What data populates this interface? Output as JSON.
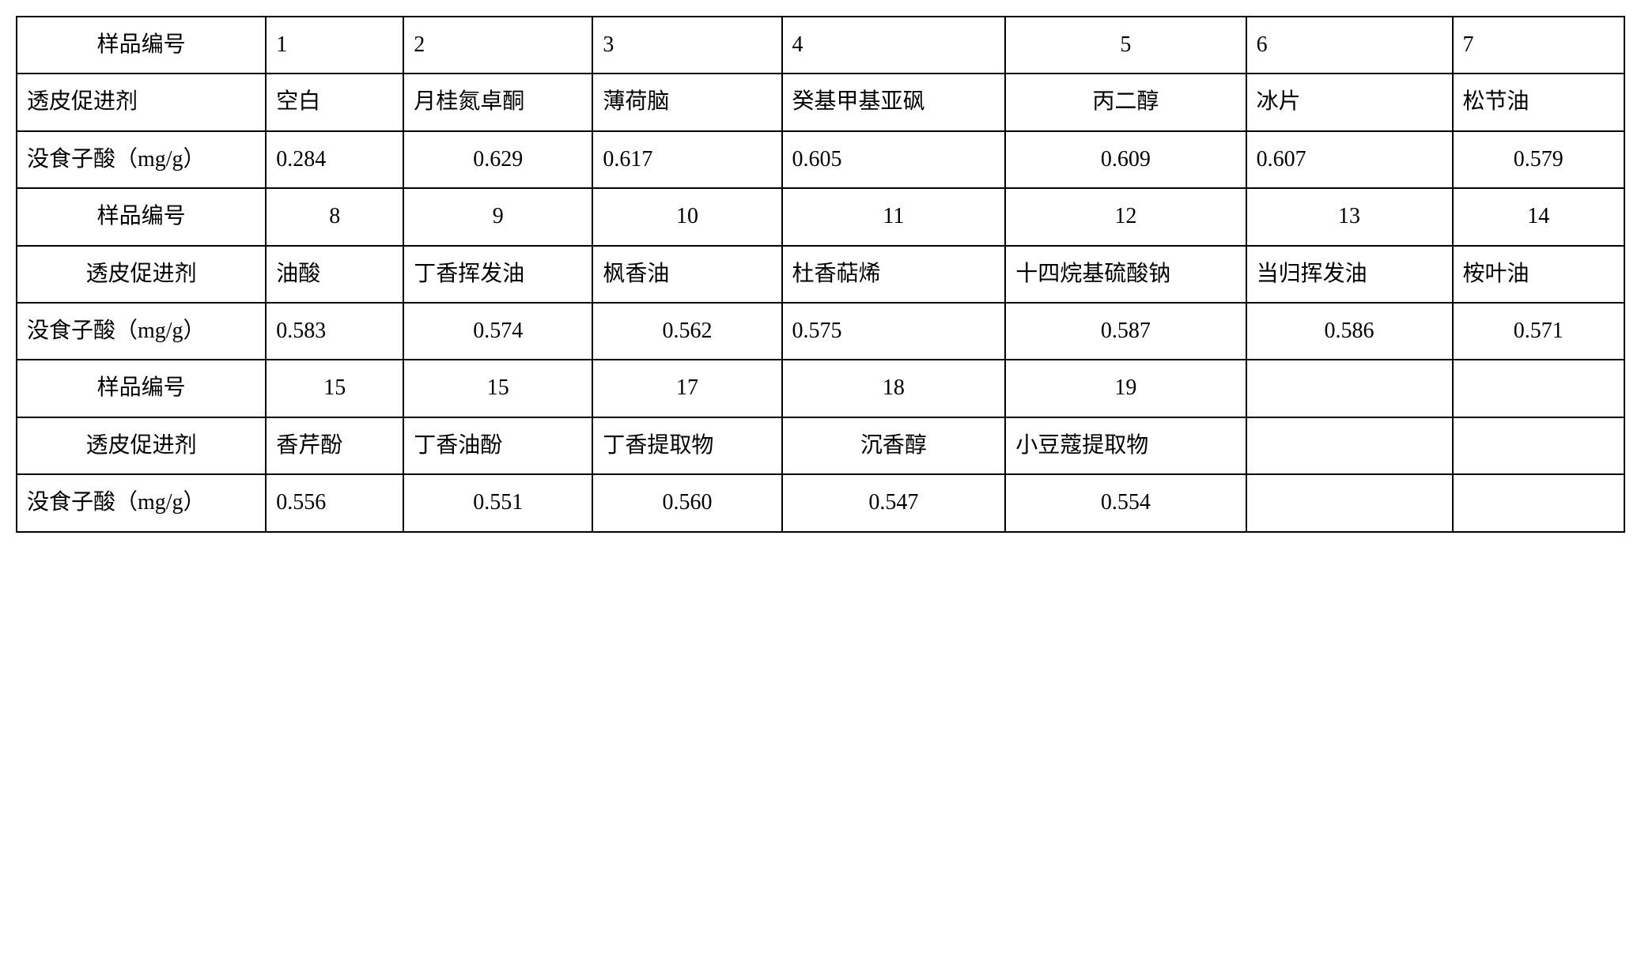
{
  "table": {
    "border_color": "#000000",
    "background_color": "#ffffff",
    "text_color": "#000000",
    "font_size_pt": 28,
    "columns": 8,
    "rows": [
      {
        "cells": [
          {
            "text": "样品编号",
            "align": "center"
          },
          {
            "text": "1",
            "align": "left"
          },
          {
            "text": "2",
            "align": "left"
          },
          {
            "text": "3",
            "align": "left"
          },
          {
            "text": "4",
            "align": "left"
          },
          {
            "text": "5",
            "align": "center"
          },
          {
            "text": "6",
            "align": "left"
          },
          {
            "text": "7",
            "align": "left"
          }
        ]
      },
      {
        "cells": [
          {
            "text": "透皮促进剂",
            "align": "left"
          },
          {
            "text": "空白",
            "align": "left"
          },
          {
            "text": "月桂氮卓酮",
            "align": "left"
          },
          {
            "text": "薄荷脑",
            "align": "left"
          },
          {
            "text": "癸基甲基亚砜",
            "align": "left"
          },
          {
            "text": "丙二醇",
            "align": "center"
          },
          {
            "text": "冰片",
            "align": "left"
          },
          {
            "text": "松节油",
            "align": "left"
          }
        ]
      },
      {
        "cells": [
          {
            "text": "没食子酸（mg/g）",
            "align": "left"
          },
          {
            "text": "0.284",
            "align": "left"
          },
          {
            "text": "0.629",
            "align": "center"
          },
          {
            "text": "0.617",
            "align": "left"
          },
          {
            "text": "0.605",
            "align": "left"
          },
          {
            "text": "0.609",
            "align": "center"
          },
          {
            "text": "0.607",
            "align": "left"
          },
          {
            "text": "0.579",
            "align": "center"
          }
        ]
      },
      {
        "cells": [
          {
            "text": "样品编号",
            "align": "center"
          },
          {
            "text": "8",
            "align": "center"
          },
          {
            "text": "9",
            "align": "center"
          },
          {
            "text": "10",
            "align": "center"
          },
          {
            "text": "11",
            "align": "center"
          },
          {
            "text": "12",
            "align": "center"
          },
          {
            "text": "13",
            "align": "center"
          },
          {
            "text": "14",
            "align": "center"
          }
        ]
      },
      {
        "cells": [
          {
            "text": "透皮促进剂",
            "align": "center"
          },
          {
            "text": "油酸",
            "align": "left"
          },
          {
            "text": "丁香挥发油",
            "align": "left"
          },
          {
            "text": "枫香油",
            "align": "left"
          },
          {
            "text": "杜香萜烯",
            "align": "left"
          },
          {
            "text": "十四烷基硫酸钠",
            "align": "left"
          },
          {
            "text": "当归挥发油",
            "align": "left"
          },
          {
            "text": "桉叶油",
            "align": "left"
          }
        ]
      },
      {
        "cells": [
          {
            "text": "没食子酸（mg/g）",
            "align": "left"
          },
          {
            "text": "0.583",
            "align": "left"
          },
          {
            "text": "0.574",
            "align": "center"
          },
          {
            "text": "0.562",
            "align": "center"
          },
          {
            "text": "0.575",
            "align": "left"
          },
          {
            "text": "0.587",
            "align": "center"
          },
          {
            "text": "0.586",
            "align": "center"
          },
          {
            "text": "0.571",
            "align": "center"
          }
        ]
      },
      {
        "cells": [
          {
            "text": "样品编号",
            "align": "center"
          },
          {
            "text": "15",
            "align": "center"
          },
          {
            "text": "15",
            "align": "center"
          },
          {
            "text": "17",
            "align": "center"
          },
          {
            "text": "18",
            "align": "center"
          },
          {
            "text": "19",
            "align": "center"
          },
          {
            "text": "",
            "align": "left"
          },
          {
            "text": "",
            "align": "left"
          }
        ]
      },
      {
        "cells": [
          {
            "text": "透皮促进剂",
            "align": "center"
          },
          {
            "text": "香芹酚",
            "align": "left"
          },
          {
            "text": "丁香油酚",
            "align": "left"
          },
          {
            "text": "丁香提取物",
            "align": "left"
          },
          {
            "text": "沉香醇",
            "align": "center"
          },
          {
            "text": "小豆蔻提取物",
            "align": "left"
          },
          {
            "text": "",
            "align": "left"
          },
          {
            "text": "",
            "align": "left"
          }
        ]
      },
      {
        "cells": [
          {
            "text": "没食子酸（mg/g）",
            "align": "left"
          },
          {
            "text": "0.556",
            "align": "left"
          },
          {
            "text": "0.551",
            "align": "center"
          },
          {
            "text": "0.560",
            "align": "center"
          },
          {
            "text": "0.547",
            "align": "center"
          },
          {
            "text": "0.554",
            "align": "center"
          },
          {
            "text": "",
            "align": "left"
          },
          {
            "text": "",
            "align": "left"
          }
        ]
      }
    ]
  }
}
